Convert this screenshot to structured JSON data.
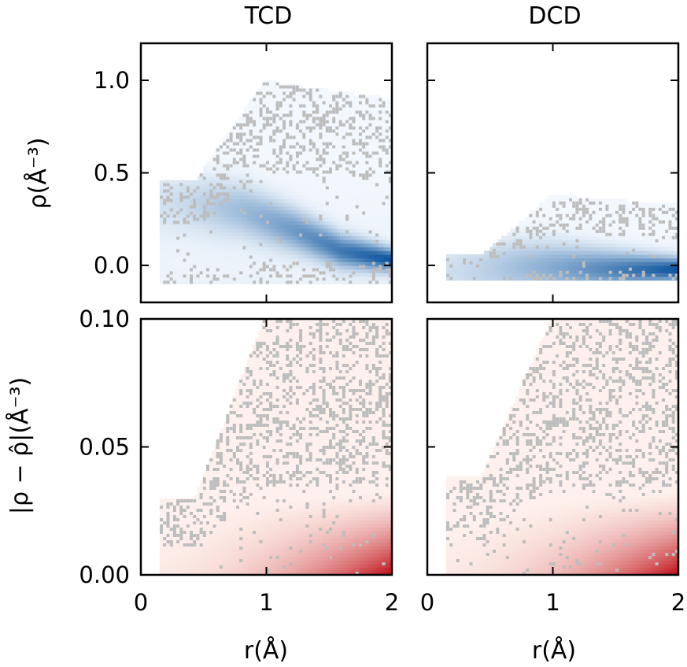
{
  "chart_data": [
    {
      "type": "heatmap",
      "panel": "top-left",
      "title": "TCD",
      "xlabel": "",
      "ylabel": "ρ(Å⁻³)",
      "xlim": [
        0,
        2
      ],
      "ylim": [
        -0.2,
        1.2
      ],
      "yticks": [
        0.0,
        0.5,
        1.0
      ],
      "ytick_labels": [
        "0.0",
        "0.5",
        "1.0"
      ],
      "xticks": [
        0,
        1,
        2
      ],
      "colormap": "Blues",
      "scatter_color": "#bdbdbd",
      "density_band": {
        "r_start": 0.15,
        "lower": -0.1,
        "upper_at_start": 0.45,
        "upper_peak": 1.0,
        "upper_at_end": 0.9
      },
      "dense_trend": [
        [
          0.3,
          0.35
        ],
        [
          0.8,
          0.3
        ],
        [
          1.2,
          0.2
        ],
        [
          1.6,
          0.08
        ],
        [
          2.0,
          0.03
        ]
      ]
    },
    {
      "type": "heatmap",
      "panel": "top-right",
      "title": "DCD",
      "xlabel": "",
      "ylabel": "",
      "xlim": [
        0,
        2
      ],
      "ylim": [
        -0.2,
        1.2
      ],
      "yticks": [
        0.0,
        0.5,
        1.0
      ],
      "xticks": [
        0,
        1,
        2
      ],
      "colormap": "Blues",
      "scatter_color": "#bdbdbd",
      "density_band": {
        "r_start": 0.15,
        "lower": -0.08,
        "upper_at_start": 0.05,
        "upper_peak": 0.38,
        "upper_at_end": 0.33
      },
      "dense_trend": [
        [
          0.3,
          0.0
        ],
        [
          1.0,
          -0.01
        ],
        [
          1.5,
          -0.02
        ],
        [
          2.0,
          -0.02
        ]
      ]
    },
    {
      "type": "heatmap",
      "panel": "bottom-left",
      "title": "",
      "xlabel": "r(Å)",
      "ylabel": "|ρ − ρ̂|(Å⁻³)",
      "xlim": [
        0,
        2
      ],
      "ylim": [
        0,
        0.1
      ],
      "yticks": [
        0.0,
        0.05,
        0.1
      ],
      "ytick_labels": [
        "0.00",
        "0.05",
        "0.10"
      ],
      "xticks": [
        0,
        1,
        2
      ],
      "xtick_labels": [
        "0",
        "1",
        "2"
      ],
      "colormap": "Reds",
      "scatter_color": "#bdbdbd",
      "density_band": {
        "r_start": 0.15,
        "lower": 0.0,
        "upper_at_start": 0.03,
        "upper_peak": 0.1,
        "upper_at_end": 0.1
      }
    },
    {
      "type": "heatmap",
      "panel": "bottom-right",
      "title": "",
      "xlabel": "r(Å)",
      "ylabel": "",
      "xlim": [
        0,
        2
      ],
      "ylim": [
        0,
        0.1
      ],
      "yticks": [
        0.0,
        0.05,
        0.1
      ],
      "xticks": [
        0,
        1,
        2
      ],
      "xtick_labels": [
        "0",
        "1",
        "2"
      ],
      "colormap": "Reds",
      "scatter_color": "#bdbdbd",
      "density_band": {
        "r_start": 0.15,
        "lower": 0.0,
        "upper_at_start": 0.038,
        "upper_peak": 0.1,
        "upper_at_end": 0.1
      }
    }
  ]
}
